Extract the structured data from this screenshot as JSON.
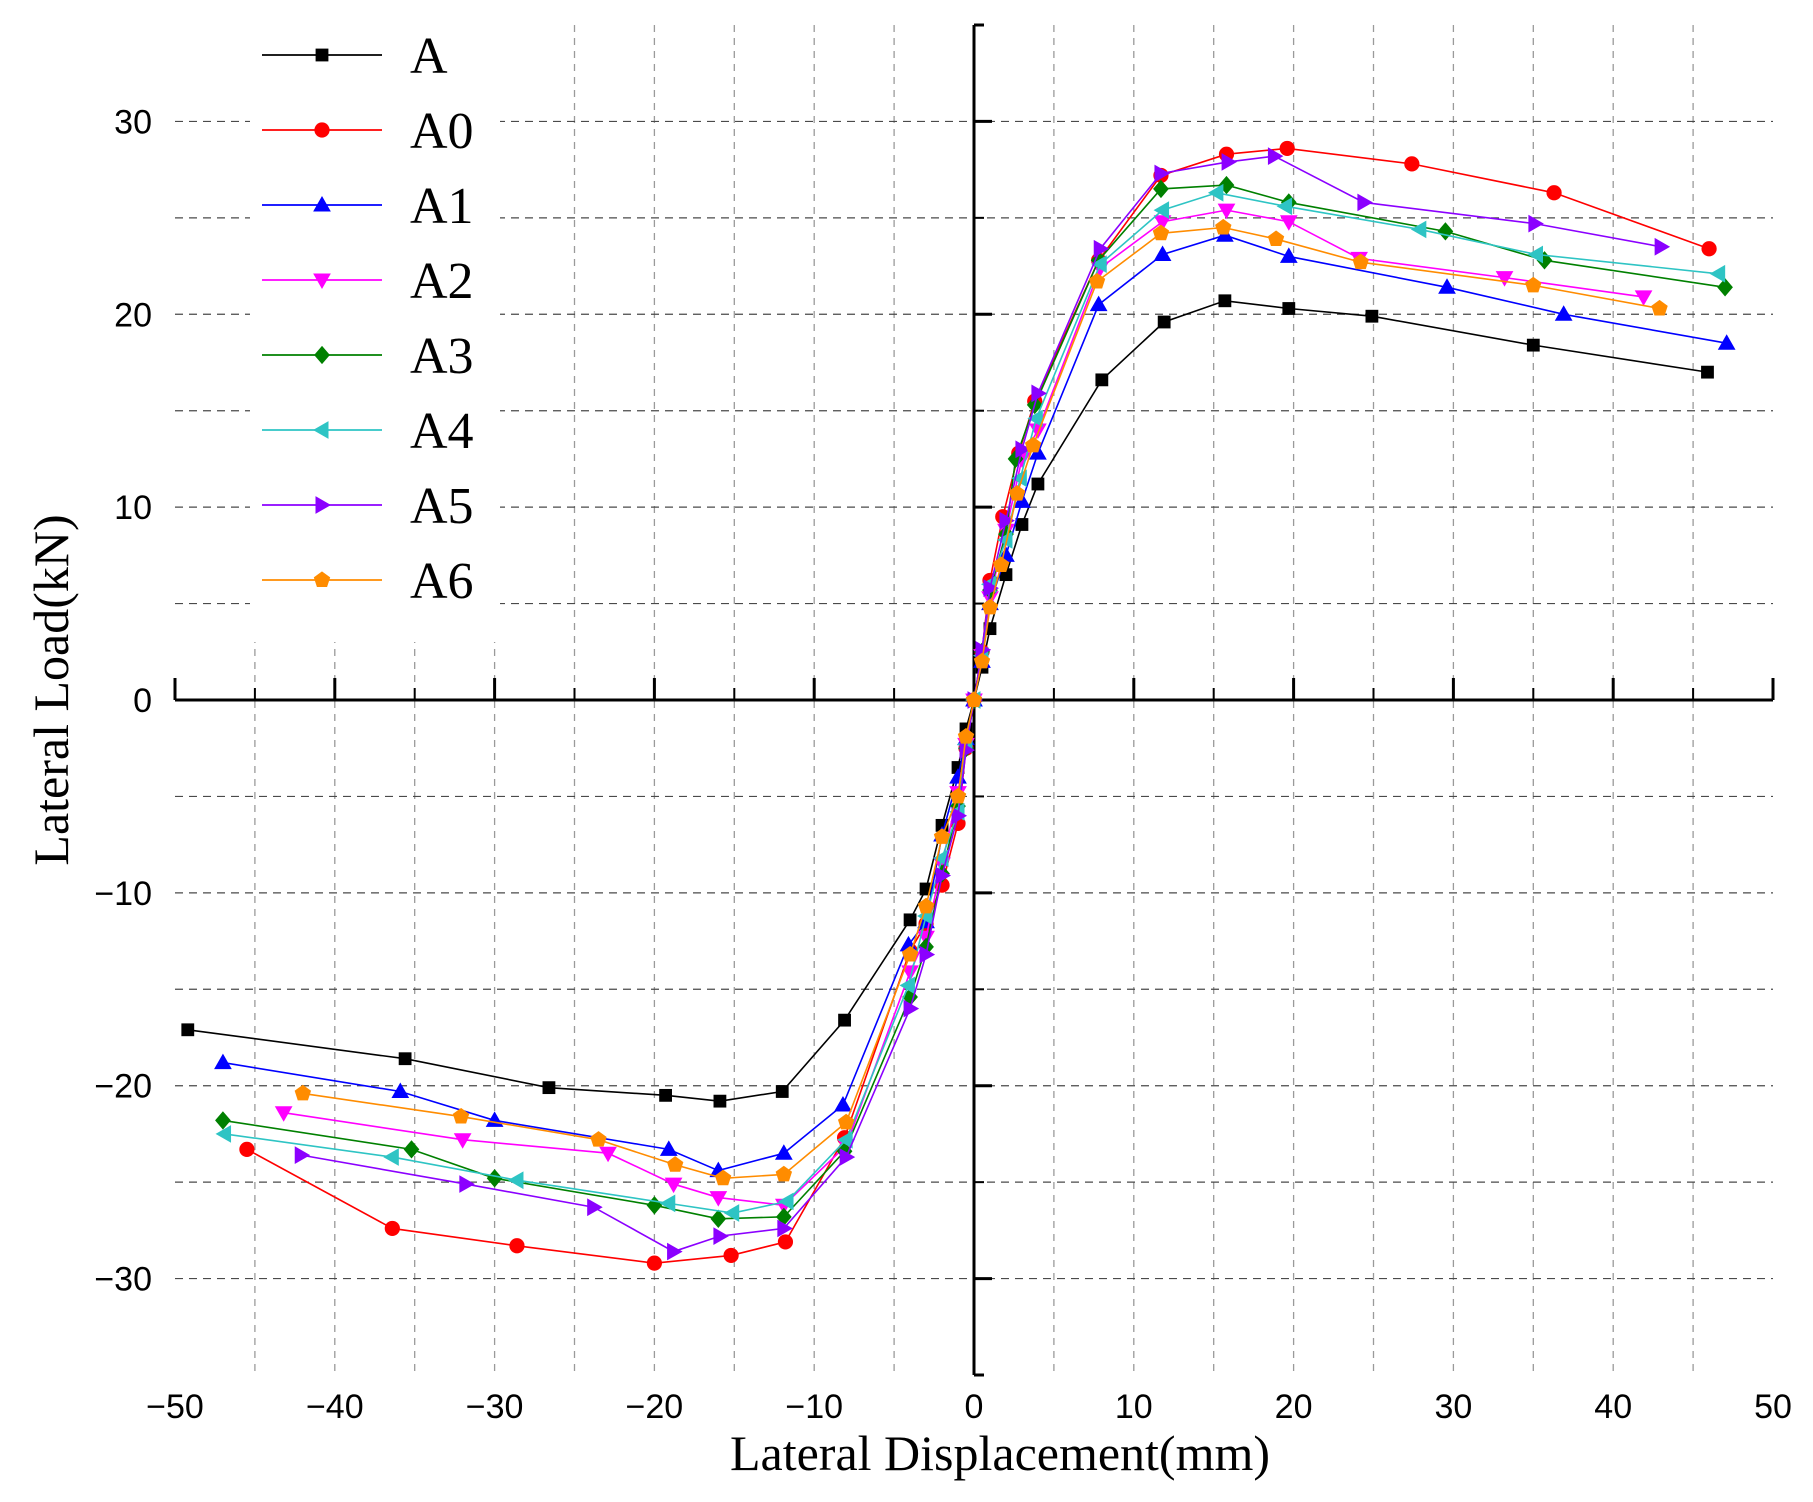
{
  "chart_data": {
    "type": "line",
    "title": "",
    "xlabel": "Lateral Displacement(mm)",
    "ylabel": "Lateral Load(kN)",
    "xlim": [
      -50,
      50
    ],
    "ylim": [
      -35,
      35
    ],
    "x_ticks": [
      -50,
      -40,
      -30,
      -20,
      -10,
      0,
      10,
      20,
      30,
      40,
      50
    ],
    "y_ticks": [
      -30,
      -20,
      -10,
      0,
      10,
      20,
      30
    ],
    "x_tick_labels": [
      "−50",
      "−40",
      "−30",
      "−20",
      "−10",
      "0",
      "10",
      "20",
      "30",
      "40",
      "50"
    ],
    "y_tick_labels": [
      "−30",
      "−20",
      "−10",
      "0",
      "10",
      "20",
      "30"
    ],
    "grid": true,
    "legend_position": "top-left",
    "series": [
      {
        "name": "A",
        "color": "#000000",
        "marker": "square",
        "x": [
          -49.2,
          -35.6,
          -26.6,
          -19.3,
          -15.9,
          -12.0,
          -8.1,
          -4.0,
          -3.0,
          -2.0,
          -1.0,
          -0.5,
          0.0,
          0.5,
          1.0,
          2.0,
          3.0,
          4.0,
          8.0,
          11.9,
          15.7,
          19.7,
          24.9,
          35.0,
          45.9
        ],
        "y": [
          -17.1,
          -18.6,
          -20.1,
          -20.5,
          -20.8,
          -20.3,
          -16.6,
          -11.4,
          -9.8,
          -6.5,
          -3.5,
          -1.5,
          0.0,
          1.7,
          3.7,
          6.5,
          9.1,
          11.2,
          16.6,
          19.6,
          20.7,
          20.3,
          19.9,
          18.4,
          17.0
        ]
      },
      {
        "name": "A0",
        "color": "#ff0000",
        "marker": "circle",
        "x": [
          -45.5,
          -36.4,
          -28.6,
          -20.0,
          -15.2,
          -11.8,
          -8.1,
          -4.0,
          -3.0,
          -2.0,
          -1.0,
          -0.5,
          0.0,
          0.5,
          1.0,
          1.8,
          2.8,
          3.8,
          7.8,
          11.7,
          15.8,
          19.6,
          27.4,
          36.3,
          46.0
        ],
        "y": [
          -23.3,
          -27.4,
          -28.3,
          -29.2,
          -28.8,
          -28.1,
          -22.7,
          -13.0,
          -11.6,
          -9.6,
          -6.4,
          -2.5,
          0.0,
          2.5,
          6.2,
          9.5,
          12.8,
          15.5,
          22.8,
          27.2,
          28.3,
          28.6,
          27.8,
          26.3,
          23.4
        ]
      },
      {
        "name": "A1",
        "color": "#0000ff",
        "marker": "triangle-up",
        "x": [
          -47.0,
          -35.9,
          -30.0,
          -19.1,
          -16.0,
          -11.9,
          -8.2,
          -4.1,
          -3.0,
          -2.0,
          -1.0,
          -0.5,
          0.0,
          0.5,
          1.0,
          2.0,
          3.0,
          4.0,
          7.8,
          11.8,
          15.7,
          19.7,
          29.6,
          36.9,
          47.1
        ],
        "y": [
          -18.8,
          -20.3,
          -21.8,
          -23.3,
          -24.4,
          -23.5,
          -21.0,
          -12.7,
          -11.5,
          -7.0,
          -4.0,
          -2.0,
          0.0,
          2.0,
          5.0,
          7.5,
          10.3,
          12.8,
          20.5,
          23.1,
          24.1,
          23.0,
          21.4,
          20.0,
          18.5
        ]
      },
      {
        "name": "A2",
        "color": "#ff00ff",
        "marker": "triangle-down",
        "x": [
          -43.2,
          -32.0,
          -22.9,
          -18.8,
          -16.0,
          -11.9,
          -8.0,
          -4.0,
          -3.0,
          -2.0,
          -1.0,
          -0.5,
          0.0,
          0.5,
          1.0,
          2.0,
          3.0,
          4.0,
          7.9,
          11.8,
          15.8,
          19.7,
          24.1,
          33.2,
          41.9
        ],
        "y": [
          -21.4,
          -22.8,
          -23.5,
          -25.1,
          -25.8,
          -26.2,
          -23.1,
          -14.1,
          -12.3,
          -8.5,
          -4.8,
          -2.3,
          0.0,
          2.3,
          5.3,
          8.8,
          12.5,
          14.0,
          22.4,
          24.8,
          25.4,
          24.8,
          22.9,
          21.9,
          20.9
        ]
      },
      {
        "name": "A3",
        "color": "#008000",
        "marker": "diamond",
        "x": [
          -47.0,
          -35.2,
          -30.0,
          -20.0,
          -16.0,
          -11.9,
          -8.1,
          -4.0,
          -3.0,
          -2.0,
          -1.0,
          -0.5,
          0.0,
          0.5,
          1.0,
          2.0,
          2.6,
          3.8,
          7.8,
          11.7,
          15.8,
          19.7,
          29.5,
          35.7,
          47.0
        ],
        "y": [
          -21.8,
          -23.3,
          -24.8,
          -26.2,
          -26.9,
          -26.8,
          -23.4,
          -15.4,
          -12.8,
          -9.0,
          -5.5,
          -2.5,
          0.0,
          2.5,
          5.7,
          8.6,
          12.5,
          15.3,
          22.8,
          26.5,
          26.7,
          25.8,
          24.3,
          22.8,
          21.4
        ]
      },
      {
        "name": "A4",
        "color": "#2ec4c4",
        "marker": "triangle-left",
        "x": [
          -46.9,
          -36.4,
          -28.6,
          -19.1,
          -15.1,
          -11.7,
          -8.0,
          -4.1,
          -3.0,
          -2.0,
          -1.0,
          -0.5,
          0.0,
          0.5,
          1.0,
          2.0,
          2.9,
          3.9,
          7.9,
          11.8,
          15.2,
          19.5,
          27.9,
          35.2,
          46.6
        ],
        "y": [
          -22.5,
          -23.7,
          -24.9,
          -26.1,
          -26.6,
          -26.0,
          -22.8,
          -14.8,
          -11.2,
          -8.2,
          -5.8,
          -2.3,
          0.0,
          2.3,
          6.0,
          8.3,
          11.5,
          14.6,
          22.6,
          25.4,
          26.3,
          25.6,
          24.4,
          23.1,
          22.1
        ]
      },
      {
        "name": "A5",
        "color": "#8b00ff",
        "marker": "triangle-right",
        "x": [
          -42.1,
          -31.8,
          -23.8,
          -18.8,
          -15.9,
          -11.9,
          -8.0,
          -4.0,
          -3.0,
          -2.0,
          -1.0,
          -0.5,
          0.0,
          0.5,
          1.0,
          2.0,
          3.0,
          4.0,
          7.9,
          11.7,
          15.9,
          18.8,
          24.4,
          35.1,
          43.0
        ],
        "y": [
          -23.6,
          -25.1,
          -26.3,
          -28.6,
          -27.8,
          -27.4,
          -23.7,
          -16.0,
          -13.2,
          -9.1,
          -6.0,
          -2.6,
          0.0,
          2.6,
          5.8,
          9.3,
          13.0,
          15.9,
          23.4,
          27.3,
          27.9,
          28.2,
          25.8,
          24.7,
          23.5
        ]
      },
      {
        "name": "A6",
        "color": "#ff8c00",
        "marker": "pentagon",
        "x": [
          -42.0,
          -32.1,
          -23.5,
          -18.7,
          -15.7,
          -11.9,
          -8.0,
          -4.0,
          -3.0,
          -2.0,
          -1.0,
          -0.5,
          0.0,
          0.5,
          1.0,
          1.7,
          2.7,
          3.7,
          7.7,
          11.7,
          15.6,
          18.9,
          24.2,
          35.0,
          42.9
        ],
        "y": [
          -20.4,
          -21.6,
          -22.8,
          -24.1,
          -24.8,
          -24.6,
          -21.9,
          -13.2,
          -10.7,
          -7.1,
          -5.0,
          -1.9,
          0.0,
          2.0,
          4.8,
          7.0,
          10.7,
          13.2,
          21.7,
          24.2,
          24.5,
          23.9,
          22.7,
          21.5,
          20.3
        ]
      }
    ]
  }
}
